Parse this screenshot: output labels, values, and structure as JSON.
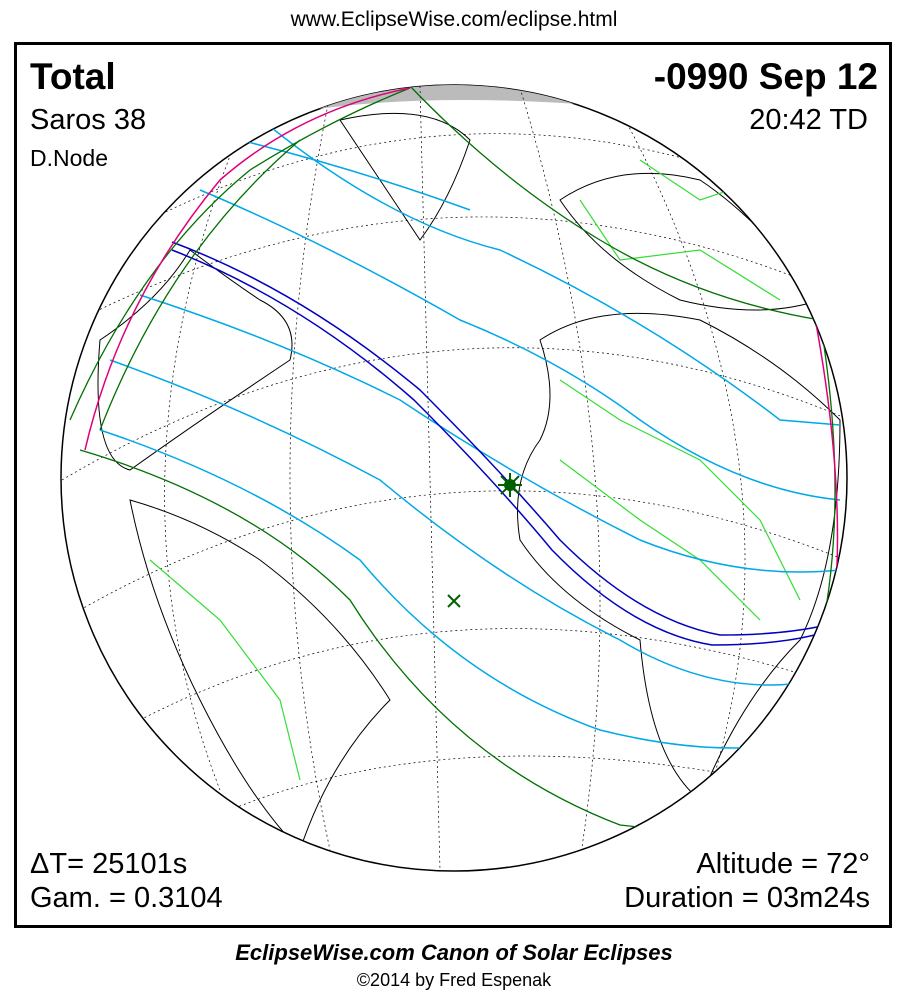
{
  "header": {
    "url": "www.EclipseWise.com/eclipse.html"
  },
  "eclipse": {
    "type": "Total",
    "saros": "Saros  38",
    "node": "D.Node",
    "date": "-0990 Sep 12",
    "time": "20:42 TD",
    "delta_t": "ΔT=  25101s",
    "gamma": "Gam. = 0.3104",
    "altitude": "Altitude = 72°",
    "duration": "Duration = 03m24s"
  },
  "footer": {
    "title": "EclipseWise.com Canon of Solar Eclipses",
    "copyright": "©2014 by Fred Espenak"
  },
  "colors": {
    "central_path": "#0000c0",
    "penumbral_lines": "#00a8e8",
    "limits": "#007000",
    "rise_set": "#e0007a",
    "borders": "#33dd33",
    "coastlines": "#000000"
  }
}
